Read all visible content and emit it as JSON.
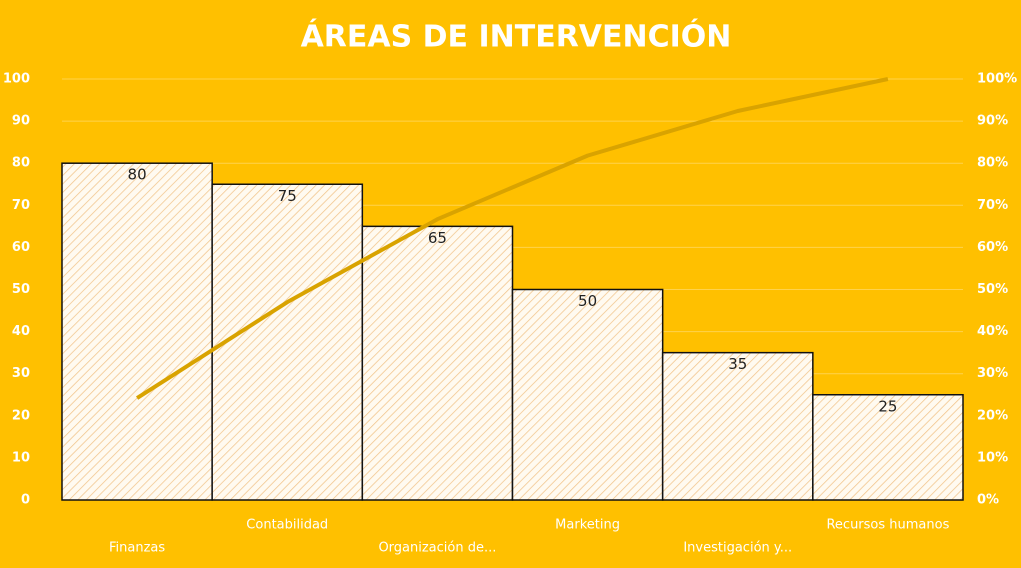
{
  "chart_data": {
    "type": "pareto",
    "title": "ÁREAS DE INTERVENCIÓN",
    "categories": [
      "Finanzas",
      "Contabilidad",
      "Organización de...",
      "Marketing",
      "Investigación y...",
      "Recursos humanos"
    ],
    "series": [
      {
        "type": "bar",
        "color": "#FFFFFF",
        "values": [
          80,
          75,
          65,
          50,
          35,
          25
        ]
      },
      {
        "type": "line",
        "axis": "y2",
        "color": "#D9A300",
        "values": [
          24.2,
          47.0,
          66.7,
          81.8,
          92.4,
          100
        ]
      }
    ],
    "ylim": [
      0,
      100
    ],
    "yticks": [
      0,
      10,
      20,
      30,
      40,
      50,
      60,
      70,
      80,
      90,
      100
    ],
    "y2lim": [
      0,
      100
    ],
    "y2ticks": [
      {
        "value": 0,
        "label": "0%"
      },
      {
        "value": 10,
        "label": "10%"
      },
      {
        "value": 20,
        "label": "20%"
      },
      {
        "value": 30,
        "label": "30%"
      },
      {
        "value": 40,
        "label": "40%"
      },
      {
        "value": 50,
        "label": "50%"
      },
      {
        "value": 60,
        "label": "60%"
      },
      {
        "value": 70,
        "label": "70%"
      },
      {
        "value": 80,
        "label": "80%"
      },
      {
        "value": 90,
        "label": "90%"
      },
      {
        "value": 100,
        "label": "100%"
      }
    ],
    "grid": true
  }
}
